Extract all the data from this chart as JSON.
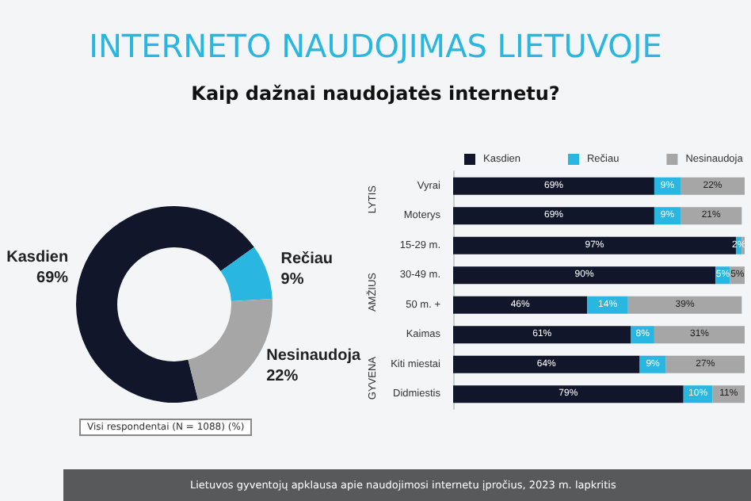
{
  "chart_data": [
    {
      "type": "donut",
      "title": "INTERNETO NAUDOJIMAS LIETUVOJE",
      "subtitle": "Kaip dažnai naudojatės internetu?",
      "categories": [
        "Kasdien",
        "Rečiau",
        "Nesinaudoja"
      ],
      "values": [
        69,
        9,
        22
      ],
      "colors": [
        "#12162b",
        "#29b6e0",
        "#a6a6a6"
      ],
      "value_labels": [
        "69%",
        "9%",
        "22%"
      ],
      "legend": false,
      "annotations": [
        "Visi respondentai (N = 1088) (%)",
        "Lietuvos gyventojų apklausa apie naudojimosi internetu įpročius, 2023 m. lapkritis"
      ]
    },
    {
      "type": "bar",
      "orientation": "horizontal",
      "stacked": true,
      "categories": [
        "Vyrai",
        "Moterys",
        "15-29 m.",
        "30-49 m.",
        "50 m. +",
        "Kaimas",
        "Kiti miestai",
        "Didmiestis"
      ],
      "series": [
        {
          "name": "Kasdien",
          "color": "#12162b",
          "values": [
            69,
            69,
            97,
            90,
            46,
            61,
            64,
            79
          ],
          "value_labels": [
            "69%",
            "69%",
            "97%",
            "90%",
            "46%",
            "61%",
            "64%",
            "79%"
          ]
        },
        {
          "name": "Rečiau",
          "color": "#29b6e0",
          "values": [
            9,
            9,
            2,
            5,
            14,
            8,
            9,
            10
          ],
          "value_labels": [
            "9%",
            "9%",
            "2%",
            "5%",
            "14%",
            "8%",
            "9%",
            "10%"
          ]
        },
        {
          "name": "Nesinaudoja",
          "color": "#a6a6a6",
          "values": [
            22,
            21,
            1,
            5,
            39,
            31,
            27,
            11
          ],
          "value_labels": [
            "22%",
            "21%",
            null,
            "5%",
            "39%",
            "31%",
            "27%",
            "11%"
          ]
        }
      ],
      "xlim": [
        0,
        100
      ],
      "tick_labels": "y",
      "legend": "top",
      "annotations": [
        "LYTIS",
        "AMŽIUS",
        "GYVENA"
      ]
    }
  ]
}
